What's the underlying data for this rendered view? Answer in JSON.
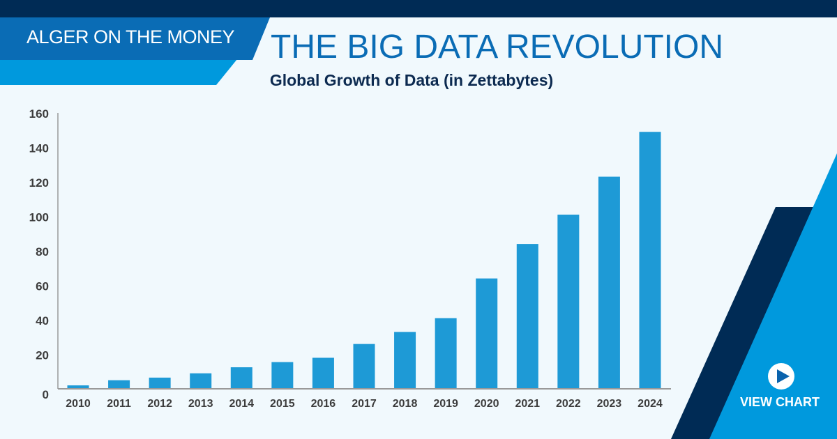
{
  "header": {
    "brand": "ALGER ON THE MONEY",
    "title": "THE BIG DATA REVOLUTION"
  },
  "cta": {
    "label": "VIEW CHART",
    "icon": "play-icon"
  },
  "colors": {
    "navy": "#002b55",
    "brand_blue": "#0a6cb5",
    "light_blue": "#0099dd",
    "bar": "#1e9ad6",
    "background": "#f1f9fd"
  },
  "chart_data": {
    "type": "bar",
    "title": "Global Growth of Data (in Zettabytes)",
    "categories": [
      "2010",
      "2011",
      "2012",
      "2013",
      "2014",
      "2015",
      "2016",
      "2017",
      "2018",
      "2019",
      "2020",
      "2021",
      "2022",
      "2023",
      "2024"
    ],
    "values": [
      2,
      5,
      6.5,
      9,
      12.5,
      15.5,
      18,
      26,
      33,
      41,
      64,
      84,
      101,
      123,
      149
    ],
    "ylim": [
      0,
      160
    ],
    "yticks": [
      "0",
      "20",
      "40",
      "60",
      "80",
      "100",
      "120",
      "140",
      "160"
    ],
    "grid": false,
    "xlabel": "",
    "ylabel": ""
  }
}
